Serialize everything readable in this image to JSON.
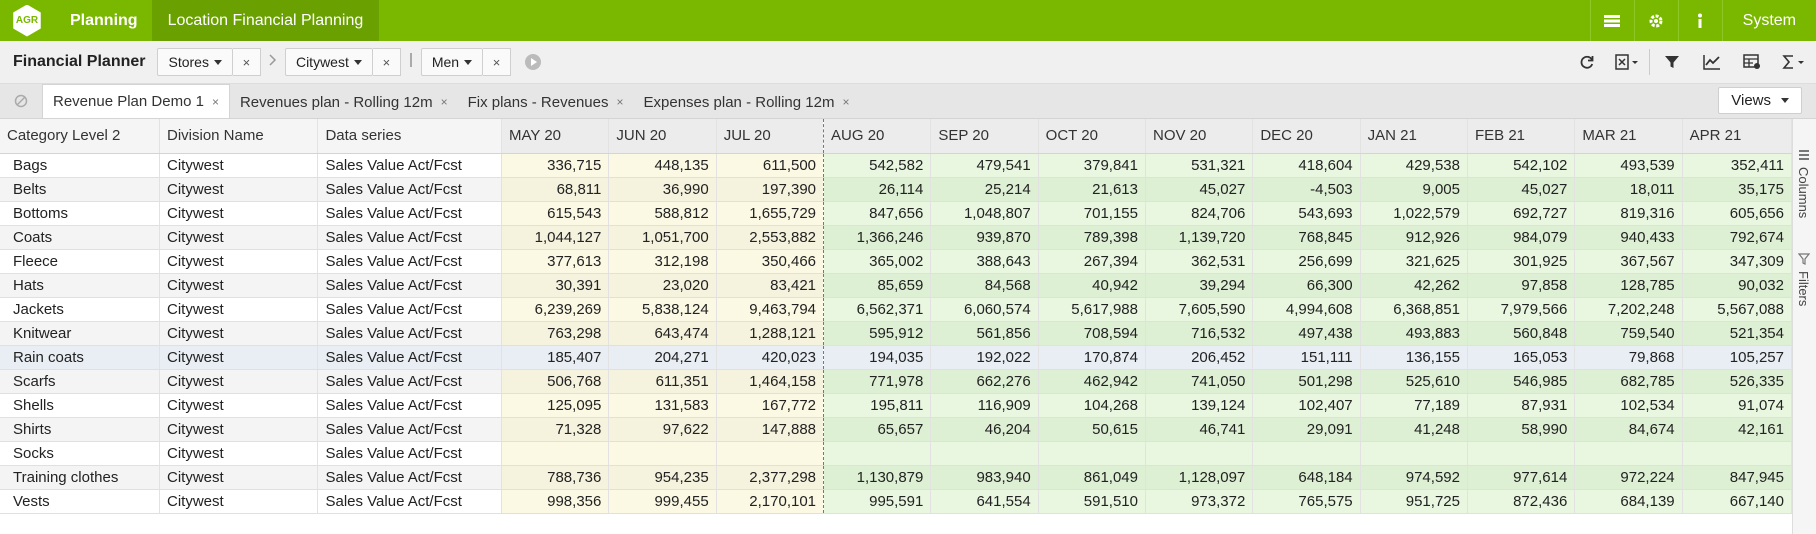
{
  "topbar": {
    "logo_text": "AGR",
    "app": "Planning",
    "module": "Location Financial Planning",
    "icons": [
      "table-icon",
      "gear-icon",
      "info-icon"
    ],
    "system_label": "System"
  },
  "toolbar": {
    "title": "Financial Planner",
    "filters": [
      {
        "label": "Stores"
      },
      {
        "label": "Citywest"
      },
      {
        "label": "Men"
      }
    ],
    "close_glyph": "×",
    "right_icons": [
      "refresh-icon",
      "excel-export-icon",
      "filter-icon",
      "chart-icon",
      "grid-settings-icon",
      "sum-icon"
    ]
  },
  "tabs": [
    {
      "label": "Revenue Plan Demo 1",
      "active": true
    },
    {
      "label": "Revenues plan - Rolling 12m",
      "active": false
    },
    {
      "label": "Fix plans - Revenues",
      "active": false
    },
    {
      "label": "Expenses plan - Rolling 12m",
      "active": false
    }
  ],
  "views_label": "Views",
  "grid": {
    "columns": [
      "Category Level 2",
      "Division Name",
      "Data series"
    ],
    "months": [
      "MAY 20",
      "JUN 20",
      "JUL 20",
      "AUG 20",
      "SEP 20",
      "OCT 20",
      "NOV 20",
      "DEC 20",
      "JAN 21",
      "FEB 21",
      "MAR 21",
      "APR 21"
    ],
    "rows": [
      {
        "category": "Bags",
        "division": "Citywest",
        "series": "Sales Value Act/Fcst",
        "values": [
          "336,715",
          "448,135",
          "611,500",
          "542,582",
          "479,541",
          "379,841",
          "531,321",
          "418,604",
          "429,538",
          "542,102",
          "493,539",
          "352,411"
        ]
      },
      {
        "category": "Belts",
        "division": "Citywest",
        "series": "Sales Value Act/Fcst",
        "values": [
          "68,811",
          "36,990",
          "197,390",
          "26,114",
          "25,214",
          "21,613",
          "45,027",
          "-4,503",
          "9,005",
          "45,027",
          "18,011",
          "35,175"
        ]
      },
      {
        "category": "Bottoms",
        "division": "Citywest",
        "series": "Sales Value Act/Fcst",
        "values": [
          "615,543",
          "588,812",
          "1,655,729",
          "847,656",
          "1,048,807",
          "701,155",
          "824,706",
          "543,693",
          "1,022,579",
          "692,727",
          "819,316",
          "605,656"
        ]
      },
      {
        "category": "Coats",
        "division": "Citywest",
        "series": "Sales Value Act/Fcst",
        "values": [
          "1,044,127",
          "1,051,700",
          "2,553,882",
          "1,366,246",
          "939,870",
          "789,398",
          "1,139,720",
          "768,845",
          "912,926",
          "984,079",
          "940,433",
          "792,674"
        ]
      },
      {
        "category": "Fleece",
        "division": "Citywest",
        "series": "Sales Value Act/Fcst",
        "values": [
          "377,613",
          "312,198",
          "350,466",
          "365,002",
          "388,643",
          "267,394",
          "362,531",
          "256,699",
          "321,625",
          "301,925",
          "367,567",
          "347,309"
        ]
      },
      {
        "category": "Hats",
        "division": "Citywest",
        "series": "Sales Value Act/Fcst",
        "values": [
          "30,391",
          "23,020",
          "83,421",
          "85,659",
          "84,568",
          "40,942",
          "39,294",
          "66,300",
          "42,262",
          "97,858",
          "128,785",
          "90,032"
        ]
      },
      {
        "category": "Jackets",
        "division": "Citywest",
        "series": "Sales Value Act/Fcst",
        "values": [
          "6,239,269",
          "5,838,124",
          "9,463,794",
          "6,562,371",
          "6,060,574",
          "5,617,988",
          "7,605,590",
          "4,994,608",
          "6,368,851",
          "7,979,566",
          "7,202,248",
          "5,567,088"
        ]
      },
      {
        "category": "Knitwear",
        "division": "Citywest",
        "series": "Sales Value Act/Fcst",
        "values": [
          "763,298",
          "643,474",
          "1,288,121",
          "595,912",
          "561,856",
          "708,594",
          "716,532",
          "497,438",
          "493,883",
          "560,848",
          "759,540",
          "521,354"
        ]
      },
      {
        "category": "Rain coats",
        "division": "Citywest",
        "series": "Sales Value Act/Fcst",
        "values": [
          "185,407",
          "204,271",
          "420,023",
          "194,035",
          "192,022",
          "170,874",
          "206,452",
          "151,111",
          "136,155",
          "165,053",
          "79,868",
          "105,257"
        ]
      },
      {
        "category": "Scarfs",
        "division": "Citywest",
        "series": "Sales Value Act/Fcst",
        "values": [
          "506,768",
          "611,351",
          "1,464,158",
          "771,978",
          "662,276",
          "462,942",
          "741,050",
          "501,298",
          "525,610",
          "546,985",
          "682,785",
          "526,335"
        ]
      },
      {
        "category": "Shells",
        "division": "Citywest",
        "series": "Sales Value Act/Fcst",
        "values": [
          "125,095",
          "131,583",
          "167,772",
          "195,811",
          "116,909",
          "104,268",
          "139,124",
          "102,407",
          "77,189",
          "87,931",
          "102,534",
          "91,074"
        ]
      },
      {
        "category": "Shirts",
        "division": "Citywest",
        "series": "Sales Value Act/Fcst",
        "values": [
          "71,328",
          "97,622",
          "147,888",
          "65,657",
          "46,204",
          "50,615",
          "46,741",
          "29,091",
          "41,248",
          "58,990",
          "84,674",
          "42,161"
        ]
      },
      {
        "category": "Socks",
        "division": "Citywest",
        "series": "Sales Value Act/Fcst",
        "values": [
          "",
          "",
          "",
          "",
          "",
          "",
          "",
          "",
          "",
          "",
          "",
          ""
        ]
      },
      {
        "category": "Training clothes",
        "division": "Citywest",
        "series": "Sales Value Act/Fcst",
        "values": [
          "788,736",
          "954,235",
          "2,377,298",
          "1,130,879",
          "983,940",
          "861,049",
          "1,128,097",
          "648,184",
          "974,592",
          "977,614",
          "972,224",
          "847,945"
        ]
      },
      {
        "category": "Vests",
        "division": "Citywest",
        "series": "Sales Value Act/Fcst",
        "values": [
          "998,356",
          "999,455",
          "2,170,101",
          "995,591",
          "641,554",
          "591,510",
          "973,372",
          "765,575",
          "951,725",
          "872,436",
          "684,139",
          "667,140"
        ]
      }
    ]
  },
  "side_panel": {
    "columns_label": "Columns",
    "filters_label": "Filters"
  }
}
